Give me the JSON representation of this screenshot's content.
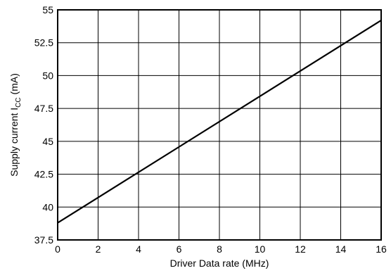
{
  "chart_data": {
    "type": "line",
    "title": "",
    "xlabel": "Driver Data rate (MHz)",
    "ylabel": {
      "prefix": "Supply current I",
      "subscript": "CC",
      "suffix": " (mA)"
    },
    "xlim": [
      0,
      16
    ],
    "ylim": [
      37.5,
      55
    ],
    "x_ticks": [
      0,
      2,
      4,
      6,
      8,
      10,
      12,
      14,
      16
    ],
    "x_tick_labels": [
      "0",
      "2",
      "4",
      "6",
      "8",
      "10",
      "12",
      "14",
      "16"
    ],
    "y_ticks": [
      37.5,
      40,
      42.5,
      45,
      47.5,
      50,
      52.5,
      55
    ],
    "y_tick_labels": [
      "37.5",
      "40",
      "42.5",
      "45",
      "47.5",
      "50",
      "52.5",
      "55"
    ],
    "grid": true,
    "series": [
      {
        "x": [
          0,
          16
        ],
        "y": [
          38.8,
          54.2
        ]
      }
    ]
  }
}
